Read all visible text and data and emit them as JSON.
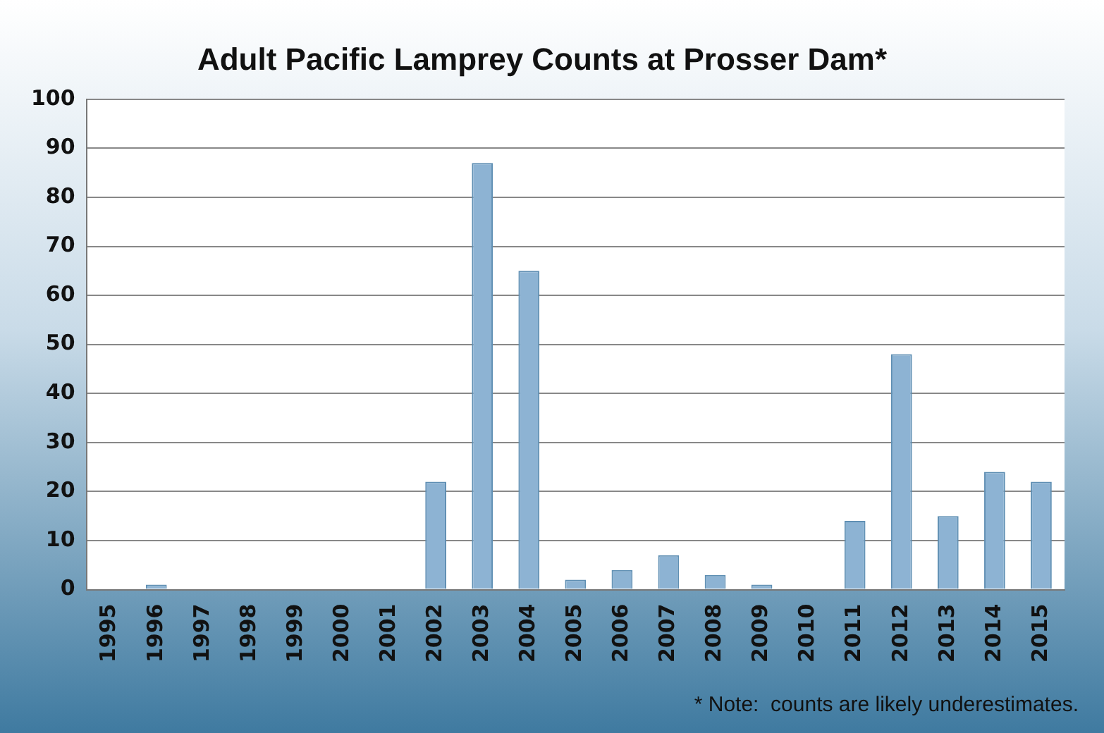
{
  "chart_data": {
    "type": "bar",
    "title": "Adult Pacific Lamprey Counts at Prosser Dam*",
    "categories": [
      "1995",
      "1996",
      "1997",
      "1998",
      "1999",
      "2000",
      "2001",
      "2002",
      "2003",
      "2004",
      "2005",
      "2006",
      "2007",
      "2008",
      "2009",
      "2010",
      "2011",
      "2012",
      "2013",
      "2014",
      "2015"
    ],
    "values": [
      0,
      1,
      0,
      0,
      0,
      0,
      0,
      22,
      87,
      65,
      2,
      4,
      7,
      3,
      1,
      0,
      14,
      48,
      15,
      24,
      22
    ],
    "color": "#8db3d3",
    "ylim": [
      0,
      100
    ],
    "yticks": [
      0,
      10,
      20,
      30,
      40,
      50,
      60,
      70,
      80,
      90,
      100
    ],
    "grid": "y",
    "annotations": [
      "* Note:  counts are likely underestimates."
    ]
  }
}
